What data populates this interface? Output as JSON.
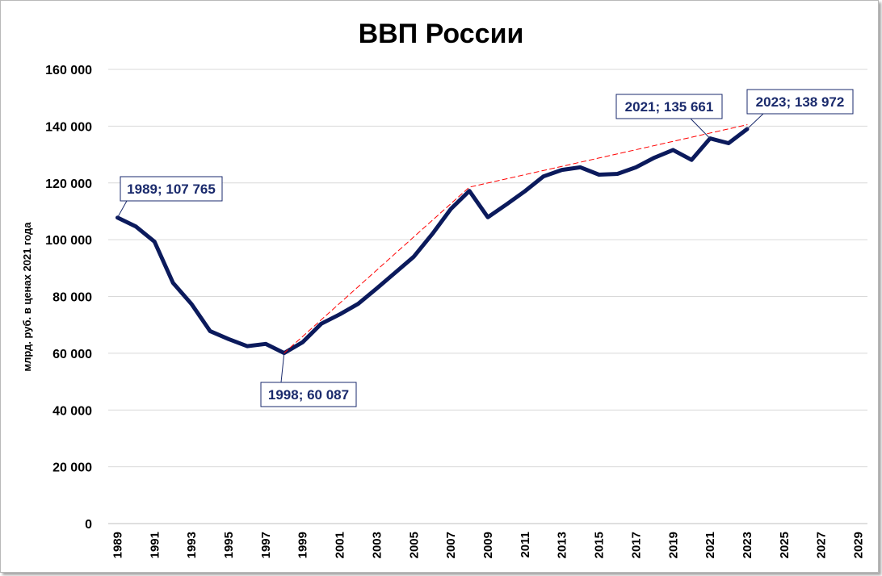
{
  "chart_data": {
    "type": "line",
    "title": "ВВП России",
    "ylabel": "млрд. руб. в ценах 2021 года",
    "xlabel": "",
    "xlim": [
      1989,
      2030
    ],
    "ylim": [
      0,
      160000
    ],
    "yticks": [
      0,
      20000,
      40000,
      60000,
      80000,
      100000,
      120000,
      140000,
      160000
    ],
    "ytick_labels": [
      "0",
      "20 000",
      "40 000",
      "60 000",
      "80 000",
      "100 000",
      "120 000",
      "140 000",
      "160 000"
    ],
    "xtick_labels": [
      "1989",
      "1991",
      "1993",
      "1995",
      "1997",
      "1999",
      "2001",
      "2003",
      "2005",
      "2007",
      "2009",
      "2011",
      "2013",
      "2015",
      "2017",
      "2019",
      "2021",
      "2023",
      "2025",
      "2027",
      "2029"
    ],
    "grid": true,
    "series": [
      {
        "color": "#0b1a5c",
        "x": [
          1989,
          1990,
          1991,
          1992,
          1993,
          1994,
          1995,
          1996,
          1997,
          1998,
          1999,
          2000,
          2001,
          2002,
          2003,
          2004,
          2005,
          2006,
          2007,
          2008,
          2009,
          2010,
          2011,
          2012,
          2013,
          2014,
          2015,
          2016,
          2017,
          2018,
          2019,
          2020,
          2021,
          2022,
          2023
        ],
        "y": [
          107765,
          104600,
          99300,
          84800,
          77300,
          67800,
          65000,
          62500,
          63300,
          60087,
          63900,
          70400,
          73700,
          77400,
          82800,
          88400,
          94000,
          102000,
          110800,
          117200,
          107900,
          112400,
          117100,
          122300,
          124600,
          125500,
          122900,
          123200,
          125500,
          128900,
          131600,
          128100,
          135661,
          134000,
          138972
        ]
      },
      {
        "style": "dashed",
        "color": "#ff0000",
        "x": [
          1998,
          2008,
          2023
        ],
        "y": [
          60087,
          118500,
          140500
        ]
      }
    ],
    "annotations": [
      {
        "text": "1989; 107 765",
        "x": 1989,
        "y": 107765
      },
      {
        "text": "1998; 60 087",
        "x": 1998,
        "y": 60087
      },
      {
        "text": "2021; 135 661",
        "x": 2021,
        "y": 135661
      },
      {
        "text": "2023; 138 972",
        "x": 2023,
        "y": 138972
      }
    ]
  }
}
